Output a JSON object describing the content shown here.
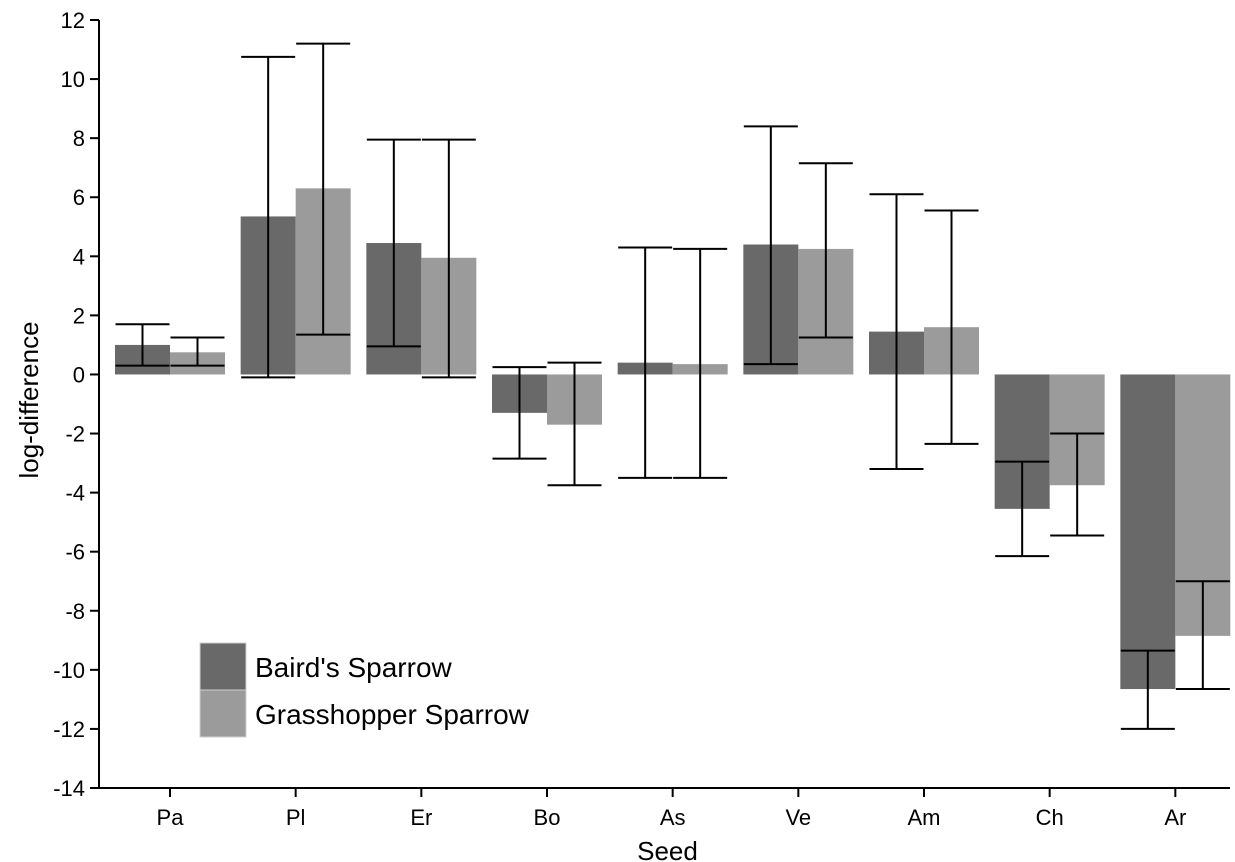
{
  "chart_data": {
    "type": "bar",
    "title": "",
    "xlabel": "Seed",
    "ylabel": "log-difference",
    "ylim": [
      -14,
      12
    ],
    "yticks": [
      -14,
      -12,
      -10,
      -8,
      -6,
      -4,
      -2,
      0,
      2,
      4,
      6,
      8,
      10,
      12
    ],
    "grid": false,
    "legend_position": "bottom-left",
    "categories": [
      "Pa",
      "Pl",
      "Er",
      "Bo",
      "As",
      "Ve",
      "Am",
      "Ch",
      "Ar"
    ],
    "series": [
      {
        "name": "Baird's Sparrow",
        "color": "#696969",
        "values": [
          1.0,
          5.35,
          4.45,
          -1.3,
          0.4,
          4.4,
          1.45,
          -4.55,
          -10.65
        ],
        "error_low": [
          0.3,
          -0.1,
          0.95,
          -2.85,
          -3.5,
          0.35,
          -3.2,
          -6.15,
          -12.0
        ],
        "error_high": [
          1.7,
          10.75,
          7.95,
          0.25,
          4.3,
          8.4,
          6.1,
          -2.95,
          -9.35
        ]
      },
      {
        "name": "Grasshopper Sparrow",
        "color": "#9b9b9b",
        "values": [
          0.75,
          6.3,
          3.95,
          -1.7,
          0.35,
          4.25,
          1.6,
          -3.75,
          -8.85
        ],
        "error_low": [
          0.3,
          1.35,
          -0.1,
          -3.75,
          -3.5,
          1.25,
          -2.35,
          -5.45,
          -10.65
        ],
        "error_high": [
          1.25,
          11.2,
          7.95,
          0.4,
          4.25,
          7.15,
          5.55,
          -2.0,
          -7.0
        ]
      }
    ]
  }
}
